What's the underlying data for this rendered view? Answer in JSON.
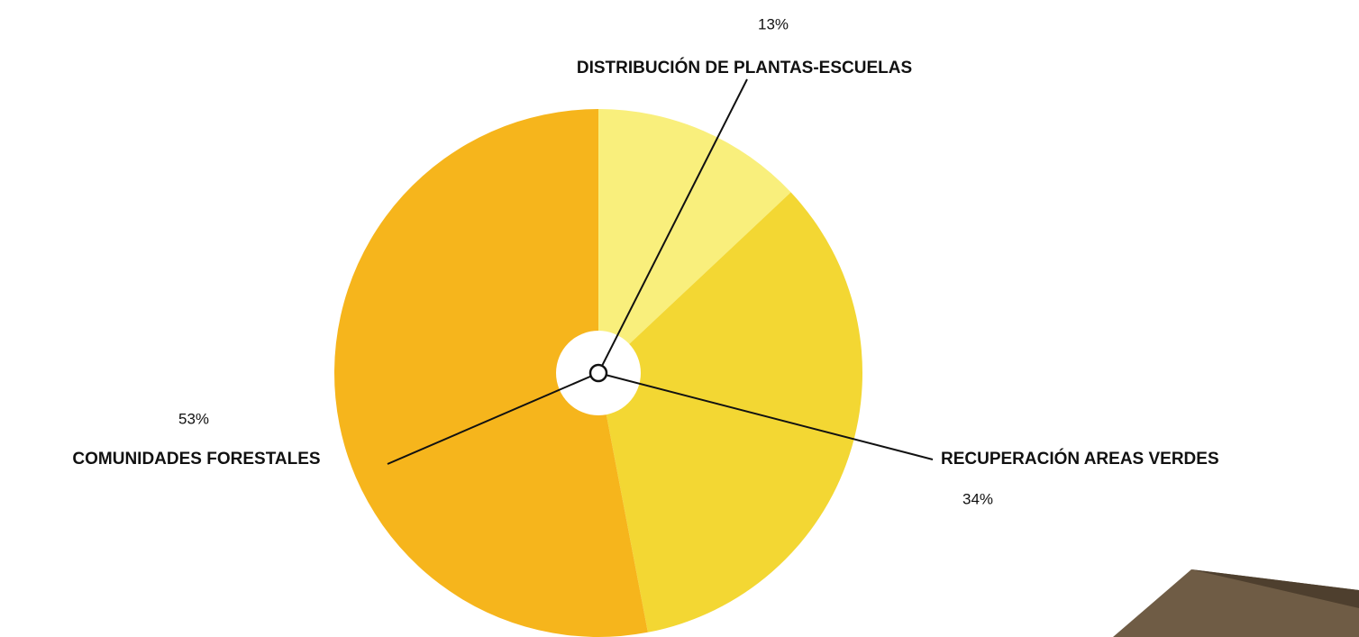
{
  "chart_data": {
    "type": "pie",
    "categories": [
      "DISTRIBUCIÓN DE PLANTAS-ESCUELAS",
      "RECUPERACIÓN AREAS VERDES",
      "COMUNIDADES FORESTALES"
    ],
    "values": [
      13,
      34,
      53
    ],
    "value_labels": [
      "13%",
      "34%",
      "53%"
    ],
    "colors": [
      "#f9ef7c",
      "#f3d733",
      "#f6b51c"
    ]
  }
}
